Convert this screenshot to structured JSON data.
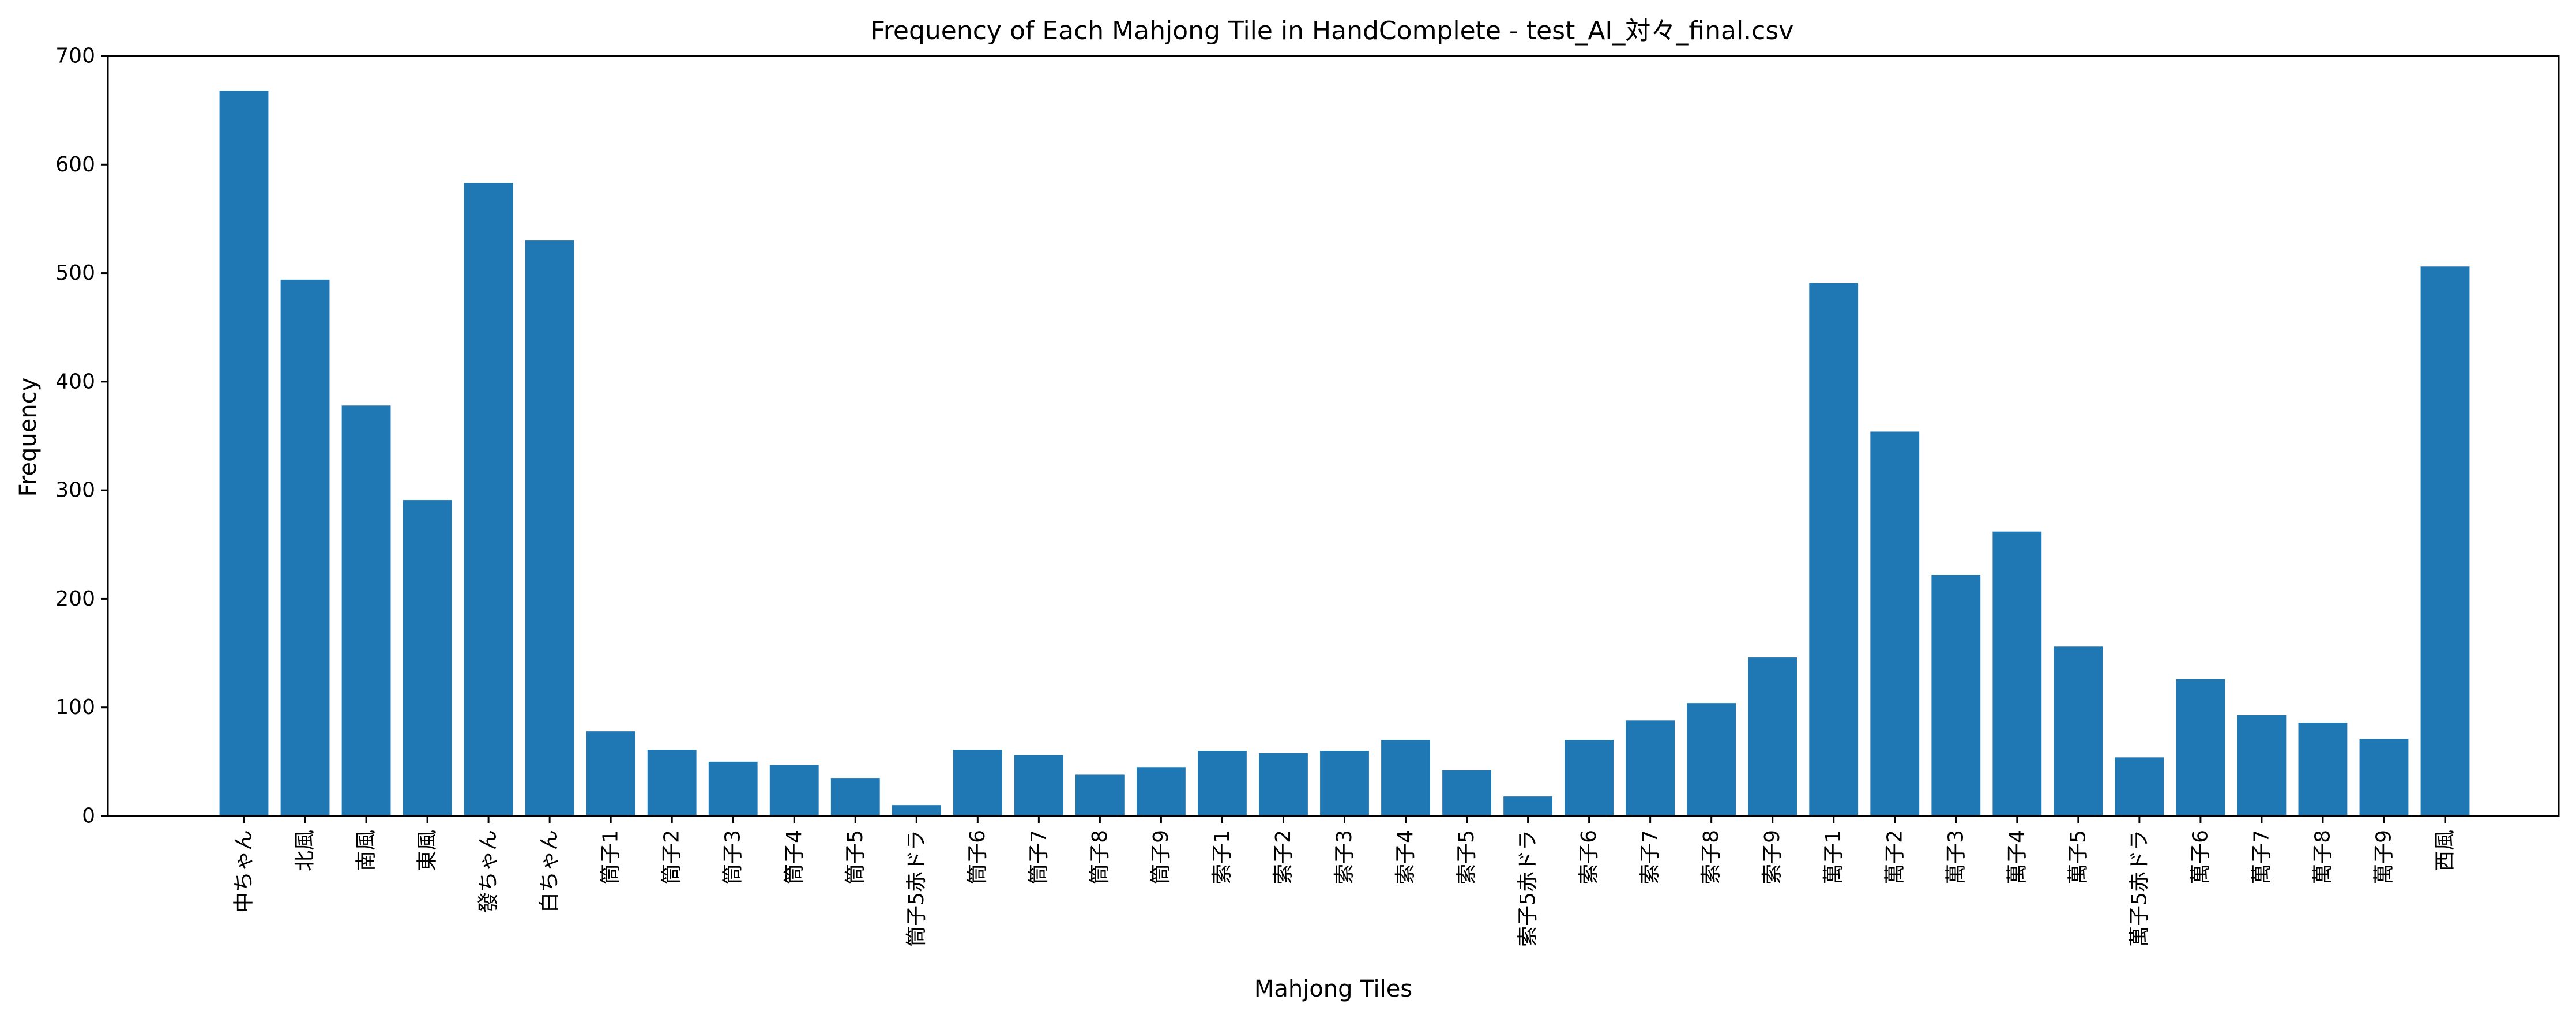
{
  "chart_data": {
    "type": "bar",
    "title": "Frequency of Each Mahjong Tile in HandComplete - test_AI_対々_final.csv",
    "xlabel": "Mahjong Tiles",
    "ylabel": "Frequency",
    "ylim": [
      0,
      700
    ],
    "yticks": [
      0,
      100,
      200,
      300,
      400,
      500,
      600,
      700
    ],
    "grid": false,
    "colors": {
      "bar": "#1f77b4"
    },
    "categories": [
      "中ちゃん",
      "北風",
      "南風",
      "東風",
      "發ちゃん",
      "白ちゃん",
      "筒子1",
      "筒子2",
      "筒子3",
      "筒子4",
      "筒子5",
      "筒子5赤ドラ",
      "筒子6",
      "筒子7",
      "筒子8",
      "筒子9",
      "索子1",
      "索子2",
      "索子3",
      "索子4",
      "索子5",
      "索子5赤ドラ",
      "索子6",
      "索子7",
      "索子8",
      "索子9",
      "萬子1",
      "萬子2",
      "萬子3",
      "萬子4",
      "萬子5",
      "萬子5赤ドラ",
      "萬子6",
      "萬子7",
      "萬子8",
      "萬子9",
      "西風"
    ],
    "values": [
      668,
      494,
      378,
      291,
      583,
      530,
      78,
      61,
      50,
      47,
      35,
      10,
      61,
      56,
      38,
      45,
      60,
      58,
      60,
      70,
      42,
      18,
      70,
      88,
      104,
      146,
      491,
      354,
      222,
      262,
      156,
      54,
      126,
      93,
      86,
      71,
      506
    ]
  }
}
